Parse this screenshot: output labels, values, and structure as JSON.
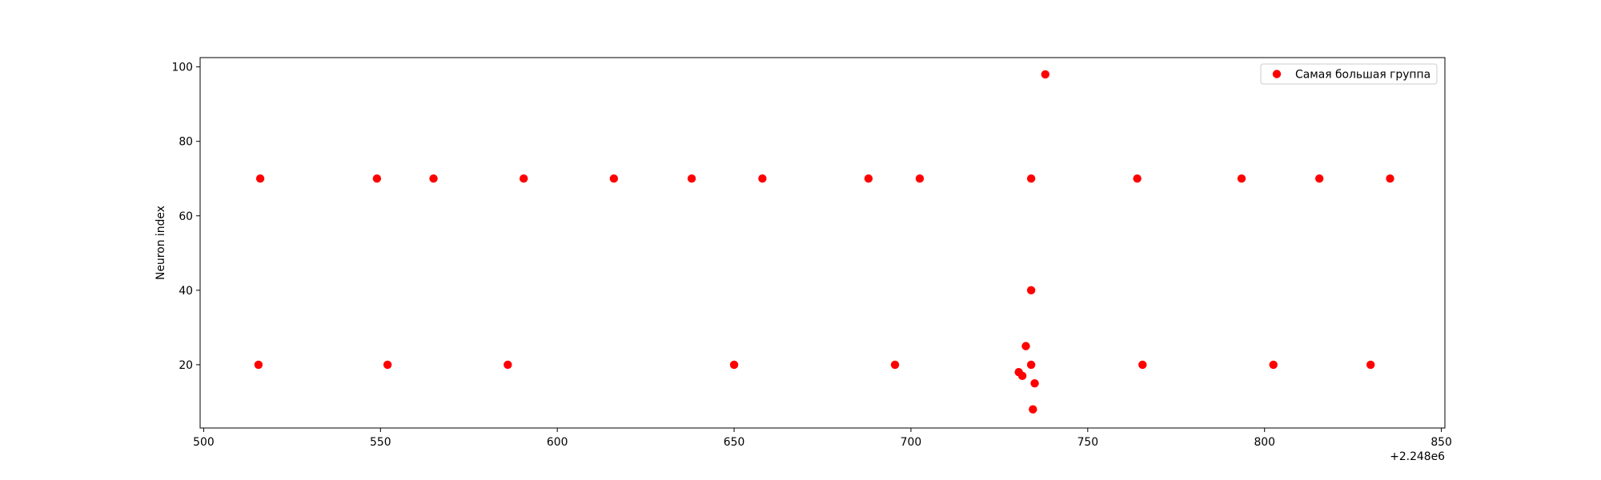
{
  "chart_data": {
    "type": "scatter",
    "title": "",
    "xlabel": "",
    "ylabel": "Neuron index",
    "x_offset_label": "+2.248e6",
    "xlim": [
      499,
      851
    ],
    "ylim": [
      3,
      102.5
    ],
    "xticks": [
      500,
      550,
      600,
      650,
      700,
      750,
      800,
      850
    ],
    "yticks": [
      20,
      40,
      60,
      80,
      100
    ],
    "grid": false,
    "legend_position": "top-right",
    "series": [
      {
        "name": "Самая большая группа",
        "color": "#ff0000",
        "points": [
          {
            "x": 516,
            "y": 70
          },
          {
            "x": 549,
            "y": 70
          },
          {
            "x": 565,
            "y": 70
          },
          {
            "x": 590.5,
            "y": 70
          },
          {
            "x": 616,
            "y": 70
          },
          {
            "x": 638,
            "y": 70
          },
          {
            "x": 658,
            "y": 70
          },
          {
            "x": 688,
            "y": 70
          },
          {
            "x": 702.5,
            "y": 70
          },
          {
            "x": 734,
            "y": 70
          },
          {
            "x": 764,
            "y": 70
          },
          {
            "x": 793.5,
            "y": 70
          },
          {
            "x": 815.5,
            "y": 70
          },
          {
            "x": 835.5,
            "y": 70
          },
          {
            "x": 515.5,
            "y": 20
          },
          {
            "x": 552,
            "y": 20
          },
          {
            "x": 586,
            "y": 20
          },
          {
            "x": 650,
            "y": 20
          },
          {
            "x": 695.5,
            "y": 20
          },
          {
            "x": 734,
            "y": 20
          },
          {
            "x": 765.5,
            "y": 20
          },
          {
            "x": 802.5,
            "y": 20
          },
          {
            "x": 830,
            "y": 20
          },
          {
            "x": 738,
            "y": 98
          },
          {
            "x": 734,
            "y": 40
          },
          {
            "x": 732.5,
            "y": 25
          },
          {
            "x": 730.5,
            "y": 18
          },
          {
            "x": 731.5,
            "y": 17
          },
          {
            "x": 735,
            "y": 15
          },
          {
            "x": 734.5,
            "y": 8
          }
        ]
      }
    ]
  }
}
